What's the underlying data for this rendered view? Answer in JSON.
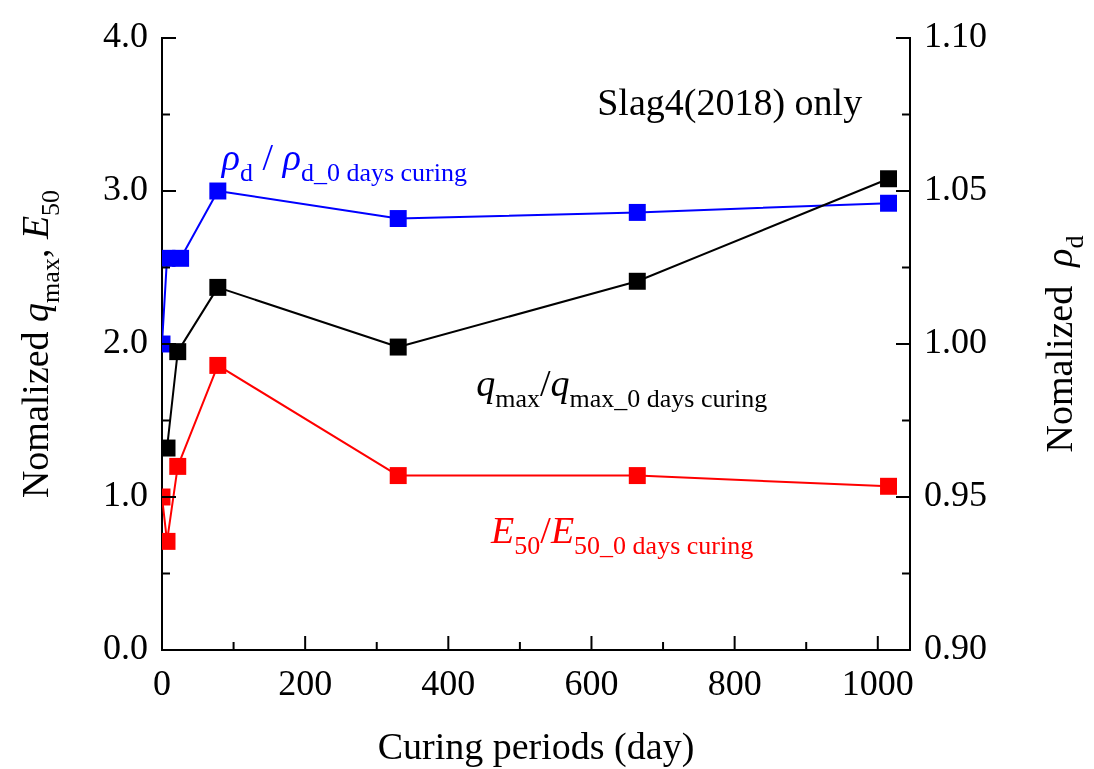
{
  "chart_data": {
    "type": "line",
    "xlabel": "Curing periods (day)",
    "ylabel": "Nomalized q$_{max}$, E$_{50}$",
    "y2label": "Nomalized  ρ$_{d}$",
    "annotations": [
      "Slag4(2018) only"
    ],
    "marker": "square",
    "line_style": "solid",
    "grid": false,
    "legend": false,
    "xlim": [
      0,
      1045
    ],
    "xticks": [
      0,
      {
        "value": 100,
        "label": null
      },
      200,
      {
        "value": 300,
        "label": null
      },
      400,
      {
        "value": 500,
        "label": null
      },
      600,
      {
        "value": 700,
        "label": null
      },
      800,
      {
        "value": 900,
        "label": null
      },
      1000
    ],
    "ylim": [
      0,
      4
    ],
    "yticks": [
      {
        "value": 0,
        "label": "0.0"
      },
      {
        "value": 0.5,
        "label": null
      },
      {
        "value": 1,
        "label": "1.0"
      },
      {
        "value": 1.5,
        "label": null
      },
      {
        "value": 2,
        "label": "2.0"
      },
      {
        "value": 2.5,
        "label": null
      },
      {
        "value": 3,
        "label": "3.0"
      },
      {
        "value": 3.5,
        "label": null
      },
      {
        "value": 4,
        "label": "4.0"
      }
    ],
    "y2lim": [
      0.9,
      1.1
    ],
    "y2ticks": [
      {
        "value": 0.9,
        "label": "0.90"
      },
      {
        "value": 0.925,
        "label": null
      },
      {
        "value": 0.95,
        "label": "0.95"
      },
      {
        "value": 0.975,
        "label": null
      },
      {
        "value": 1.0,
        "label": "1.00"
      },
      {
        "value": 1.025,
        "label": null
      },
      {
        "value": 1.05,
        "label": "1.05"
      },
      {
        "value": 1.075,
        "label": null
      },
      {
        "value": 1.1,
        "label": "1.10"
      }
    ],
    "series": [
      {
        "name": "ρ$_{d}$ / ρ$_{d_0 days curing}$",
        "color": "#0000ff",
        "axis": "y2",
        "x": [
          0,
          7,
          26,
          78,
          330,
          664,
          1015
        ],
        "values": [
          1.0,
          1.028,
          1.028,
          1.05,
          1.041,
          1.043,
          1.046
        ]
      },
      {
        "name": "q$_{max}$/q$_{max_0 days curing}$",
        "color": "#000000",
        "x": [
          7,
          22,
          78,
          330,
          664,
          1015
        ],
        "values": [
          1.32,
          1.95,
          2.37,
          1.98,
          2.41,
          3.08
        ]
      },
      {
        "name": "E$_{50}$/E$_{50_0 days curing}$",
        "color": "#ff0000",
        "x": [
          0,
          7,
          22,
          78,
          330,
          664,
          1015
        ],
        "values": [
          1.0,
          0.71,
          1.2,
          1.86,
          1.14,
          1.14,
          1.07
        ]
      }
    ]
  }
}
